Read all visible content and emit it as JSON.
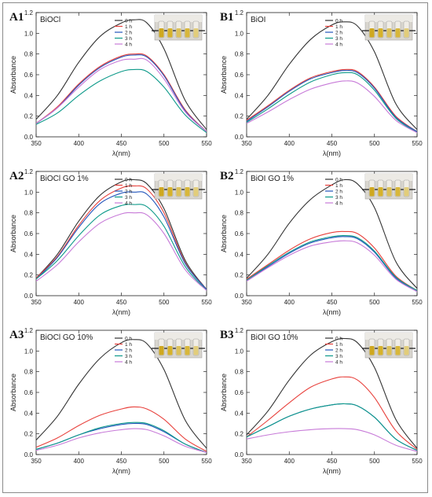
{
  "colors": {
    "0 h": "#333333",
    "1 h": "#e8413c",
    "2 h": "#2255bb",
    "3 h": "#0e9a8a",
    "4 h": "#c77ad8"
  },
  "chart_data": [
    {
      "type": "line",
      "panel": "A1",
      "title": "BiOCl",
      "xlabel": "λ(nm)",
      "ylabel": "Absorbance",
      "xlim": [
        350,
        550
      ],
      "ylim": [
        0,
        1.2
      ],
      "xticks": [
        "350",
        "400",
        "450",
        "500",
        "550"
      ],
      "yticks": [
        "0.0",
        "0.2",
        "0.4",
        "0.6",
        "0.8",
        "1.0",
        "1.2"
      ],
      "legend_position": "top-right",
      "inset_photo": "vials-photo",
      "x": [
        350,
        375,
        400,
        425,
        450,
        465,
        480,
        500,
        525,
        550
      ],
      "series": [
        {
          "name": "0 h",
          "values": [
            0.17,
            0.4,
            0.72,
            0.97,
            1.1,
            1.13,
            1.1,
            0.85,
            0.35,
            0.07
          ]
        },
        {
          "name": "1 h",
          "values": [
            0.13,
            0.29,
            0.51,
            0.68,
            0.78,
            0.8,
            0.78,
            0.6,
            0.26,
            0.05
          ]
        },
        {
          "name": "2 h",
          "values": [
            0.13,
            0.28,
            0.5,
            0.67,
            0.77,
            0.79,
            0.77,
            0.59,
            0.25,
            0.05
          ]
        },
        {
          "name": "3 h",
          "values": [
            0.12,
            0.23,
            0.4,
            0.54,
            0.63,
            0.65,
            0.63,
            0.48,
            0.21,
            0.04
          ]
        },
        {
          "name": "4 h",
          "values": [
            0.13,
            0.28,
            0.48,
            0.65,
            0.74,
            0.75,
            0.74,
            0.56,
            0.24,
            0.05
          ]
        }
      ]
    },
    {
      "type": "line",
      "panel": "B1",
      "title": "BiOI",
      "xlabel": "λ(nm)",
      "ylabel": "Absorbance",
      "xlim": [
        350,
        550
      ],
      "ylim": [
        0,
        1.2
      ],
      "xticks": [
        "350",
        "400",
        "450",
        "500",
        "550"
      ],
      "yticks": [
        "0.0",
        "0.2",
        "0.4",
        "0.6",
        "0.8",
        "1.0",
        "1.2"
      ],
      "legend_position": "top-right",
      "inset_photo": "vials-photo",
      "x": [
        350,
        375,
        400,
        425,
        450,
        465,
        480,
        500,
        525,
        550
      ],
      "series": [
        {
          "name": "0 h",
          "values": [
            0.17,
            0.4,
            0.7,
            0.94,
            1.08,
            1.11,
            1.07,
            0.82,
            0.32,
            0.07
          ]
        },
        {
          "name": "1 h",
          "values": [
            0.16,
            0.3,
            0.45,
            0.57,
            0.63,
            0.65,
            0.63,
            0.48,
            0.2,
            0.05
          ]
        },
        {
          "name": "2 h",
          "values": [
            0.15,
            0.29,
            0.44,
            0.56,
            0.62,
            0.64,
            0.62,
            0.47,
            0.19,
            0.05
          ]
        },
        {
          "name": "3 h",
          "values": [
            0.14,
            0.27,
            0.41,
            0.53,
            0.6,
            0.62,
            0.6,
            0.45,
            0.18,
            0.04
          ]
        },
        {
          "name": "4 h",
          "values": [
            0.13,
            0.24,
            0.36,
            0.46,
            0.52,
            0.54,
            0.52,
            0.39,
            0.16,
            0.04
          ]
        }
      ]
    },
    {
      "type": "line",
      "panel": "A2",
      "title": "BiOCl GO 1%",
      "xlabel": "λ(nm)",
      "ylabel": "Absorbance",
      "xlim": [
        350,
        550
      ],
      "ylim": [
        0,
        1.2
      ],
      "xticks": [
        "350",
        "400",
        "450",
        "500",
        "550"
      ],
      "yticks": [
        "0.0",
        "0.2",
        "0.4",
        "0.6",
        "0.8",
        "1.0",
        "1.2"
      ],
      "legend_position": "top-right",
      "inset_photo": "vials-photo",
      "x": [
        350,
        375,
        400,
        425,
        450,
        465,
        480,
        500,
        525,
        550
      ],
      "series": [
        {
          "name": "0 h",
          "values": [
            0.17,
            0.4,
            0.72,
            0.97,
            1.1,
            1.12,
            1.08,
            0.84,
            0.34,
            0.06
          ]
        },
        {
          "name": "1 h",
          "values": [
            0.17,
            0.38,
            0.68,
            0.92,
            1.04,
            1.06,
            1.03,
            0.8,
            0.32,
            0.06
          ]
        },
        {
          "name": "2 h",
          "values": [
            0.16,
            0.37,
            0.66,
            0.89,
            0.99,
            1.0,
            0.98,
            0.76,
            0.31,
            0.06
          ]
        },
        {
          "name": "3 h",
          "values": [
            0.16,
            0.34,
            0.58,
            0.78,
            0.87,
            0.88,
            0.86,
            0.67,
            0.28,
            0.05
          ]
        },
        {
          "name": "4 h",
          "values": [
            0.14,
            0.3,
            0.52,
            0.7,
            0.79,
            0.8,
            0.78,
            0.6,
            0.25,
            0.05
          ]
        }
      ]
    },
    {
      "type": "line",
      "panel": "B2",
      "title": "BiOI GO 1%",
      "xlabel": "λ(nm)",
      "ylabel": "Absorbance",
      "xlim": [
        350,
        550
      ],
      "ylim": [
        0,
        1.2
      ],
      "xticks": [
        "350",
        "400",
        "450",
        "500",
        "550"
      ],
      "yticks": [
        "0.0",
        "0.2",
        "0.4",
        "0.6",
        "0.8",
        "1.0",
        "1.2"
      ],
      "legend_position": "top-right",
      "inset_photo": "vials-photo",
      "x": [
        350,
        375,
        400,
        425,
        450,
        465,
        480,
        500,
        525,
        550
      ],
      "series": [
        {
          "name": "0 h",
          "values": [
            0.17,
            0.4,
            0.7,
            0.93,
            1.07,
            1.12,
            1.08,
            0.85,
            0.33,
            0.07
          ]
        },
        {
          "name": "1 h",
          "values": [
            0.16,
            0.3,
            0.44,
            0.55,
            0.61,
            0.62,
            0.6,
            0.46,
            0.19,
            0.05
          ]
        },
        {
          "name": "2 h",
          "values": [
            0.15,
            0.28,
            0.41,
            0.51,
            0.56,
            0.57,
            0.55,
            0.42,
            0.17,
            0.04
          ]
        },
        {
          "name": "3 h",
          "values": [
            0.15,
            0.29,
            0.42,
            0.52,
            0.57,
            0.58,
            0.56,
            0.43,
            0.18,
            0.05
          ]
        },
        {
          "name": "4 h",
          "values": [
            0.14,
            0.27,
            0.39,
            0.48,
            0.52,
            0.53,
            0.51,
            0.39,
            0.16,
            0.04
          ]
        }
      ]
    },
    {
      "type": "line",
      "panel": "A3",
      "title": "BiOCl GO 10%",
      "xlabel": "λ(nm)",
      "ylabel": "Absorbance",
      "xlim": [
        350,
        550
      ],
      "ylim": [
        0,
        1.2
      ],
      "xticks": [
        "350",
        "400",
        "450",
        "500",
        "550"
      ],
      "yticks": [
        "0.0",
        "0.2",
        "0.4",
        "0.6",
        "0.8",
        "1.0",
        "1.2"
      ],
      "legend_position": "top-right",
      "inset_photo": "vials-photo",
      "x": [
        350,
        375,
        400,
        425,
        450,
        465,
        480,
        500,
        525,
        550
      ],
      "series": [
        {
          "name": "0 h",
          "values": [
            0.14,
            0.37,
            0.68,
            0.93,
            1.08,
            1.11,
            1.07,
            0.82,
            0.33,
            0.06
          ]
        },
        {
          "name": "1 h",
          "values": [
            0.07,
            0.16,
            0.28,
            0.38,
            0.44,
            0.46,
            0.44,
            0.34,
            0.15,
            0.03
          ]
        },
        {
          "name": "2 h",
          "values": [
            0.05,
            0.11,
            0.19,
            0.25,
            0.29,
            0.3,
            0.29,
            0.22,
            0.1,
            0.02
          ]
        },
        {
          "name": "3 h",
          "values": [
            0.05,
            0.11,
            0.19,
            0.26,
            0.3,
            0.31,
            0.3,
            0.23,
            0.1,
            0.02
          ]
        },
        {
          "name": "4 h",
          "values": [
            0.04,
            0.09,
            0.16,
            0.21,
            0.24,
            0.25,
            0.24,
            0.18,
            0.08,
            0.02
          ]
        }
      ]
    },
    {
      "type": "line",
      "panel": "B3",
      "title": "BiOI GO 10%",
      "xlabel": "λ(nm)",
      "ylabel": "Absorbance",
      "xlim": [
        350,
        550
      ],
      "ylim": [
        0,
        1.2
      ],
      "xticks": [
        "350",
        "400",
        "450",
        "500",
        "550"
      ],
      "yticks": [
        "0.0",
        "0.2",
        "0.4",
        "0.6",
        "0.8",
        "1.0",
        "1.2"
      ],
      "legend_position": "top-right",
      "inset_photo": "vials-photo",
      "x": [
        350,
        375,
        400,
        425,
        450,
        465,
        480,
        500,
        525,
        550
      ],
      "series": [
        {
          "name": "0 h",
          "values": [
            0.19,
            0.42,
            0.72,
            0.96,
            1.09,
            1.12,
            1.08,
            0.84,
            0.34,
            0.06
          ]
        },
        {
          "name": "1 h",
          "values": [
            0.17,
            0.33,
            0.5,
            0.65,
            0.73,
            0.75,
            0.72,
            0.55,
            0.23,
            0.05
          ]
        },
        {
          "name": "2 h",
          "values": [
            0.17,
            0.27,
            0.37,
            0.44,
            0.48,
            0.49,
            0.47,
            0.36,
            0.15,
            0.04
          ]
        },
        {
          "name": "3 h",
          "values": [
            0.17,
            0.27,
            0.37,
            0.44,
            0.48,
            0.49,
            0.47,
            0.36,
            0.15,
            0.04
          ]
        },
        {
          "name": "4 h",
          "values": [
            0.15,
            0.19,
            0.22,
            0.24,
            0.25,
            0.25,
            0.24,
            0.19,
            0.09,
            0.03
          ]
        }
      ]
    }
  ]
}
